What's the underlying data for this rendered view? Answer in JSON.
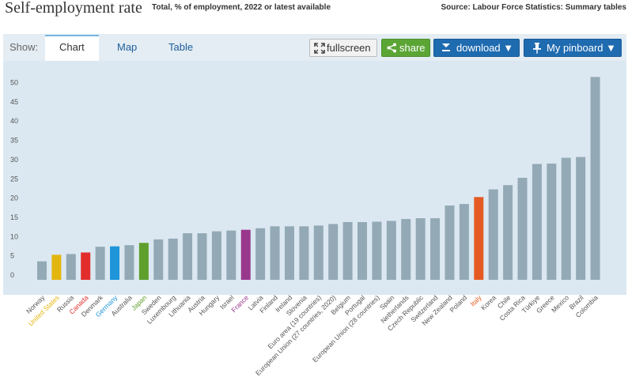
{
  "header": {
    "title": "Self-employment rate",
    "subtitle": "Total, % of employment, 2022 or latest available",
    "source": "Source: Labour Force Statistics: Summary tables"
  },
  "toolbar": {
    "show_label": "Show:",
    "tabs": [
      "Chart",
      "Map",
      "Table"
    ],
    "fullscreen_label": "fullscreen",
    "share_label": "share",
    "download_label": "download ▼",
    "pinboard_label": "My pinboard ▼"
  },
  "colors": {
    "default_bar": "#93a9b6",
    "highlights": {
      "United States": "#e3b50f",
      "Canada": "#e32d2d",
      "Germany": "#1e94d9",
      "Japan": "#5f9f2c",
      "France": "#99378c",
      "Italy": "#e55a22"
    }
  },
  "chart_data": {
    "type": "bar",
    "categories": [
      "Norway",
      "United States",
      "Russia",
      "Canada",
      "Denmark",
      "Germany",
      "Australia",
      "Japan",
      "Sweden",
      "Luxembourg",
      "Lithuania",
      "Austria",
      "Hungary",
      "Israel",
      "France",
      "Latvia",
      "Finland",
      "Ireland",
      "Slovenia",
      "Euro area (19 countries)",
      "European Union (27 countries, 2020)",
      "Belgium",
      "Portugal",
      "European Union (28 countries)",
      "Spain",
      "Netherlands",
      "Czech Republic",
      "Switzerland",
      "New Zealand",
      "Poland",
      "Italy",
      "Korea",
      "Chile",
      "Costa Rica",
      "Türkiye",
      "Greece",
      "Mexico",
      "Brazil",
      "Colombia"
    ],
    "values": [
      4.8,
      6.5,
      6.7,
      7.1,
      8.6,
      8.7,
      9.0,
      9.6,
      10.5,
      10.7,
      12.1,
      12.1,
      12.6,
      12.8,
      13.0,
      13.4,
      13.9,
      13.9,
      13.9,
      14.1,
      14.5,
      15.0,
      15.0,
      15.1,
      15.3,
      15.8,
      16.0,
      16.0,
      19.3,
      19.7,
      21.5,
      23.5,
      24.6,
      26.5,
      30.1,
      30.2,
      31.7,
      31.9,
      52.7
    ],
    "title": "Self-employment rate",
    "xlabel": "",
    "ylabel": "",
    "ylim": [
      0,
      55
    ],
    "yticks": [
      0,
      5,
      10,
      15,
      20,
      25,
      30,
      35,
      40,
      45,
      50
    ],
    "grid": false,
    "legend": "none"
  }
}
